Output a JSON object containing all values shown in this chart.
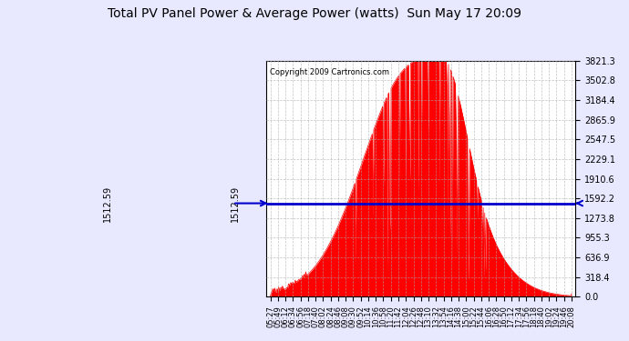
{
  "title": "Total PV Panel Power & Average Power (watts)  Sun May 17 20:09",
  "copyright": "Copyright 2009 Cartronics.com",
  "average_power": 1512.59,
  "y_max": 3821.3,
  "y_ticks": [
    0.0,
    318.4,
    636.9,
    955.3,
    1273.8,
    1592.2,
    1910.6,
    2229.1,
    2547.5,
    2865.9,
    3184.4,
    3502.8,
    3821.3
  ],
  "avg_line_color": "#0000cc",
  "fill_color": "#ff0000",
  "background_color": "#e8e8ff",
  "plot_bg_color": "#ffffff",
  "grid_color": "#aaaaaa",
  "x_labels": [
    "05:27",
    "05:49",
    "06:12",
    "06:34",
    "06:56",
    "07:18",
    "07:40",
    "08:02",
    "08:24",
    "08:46",
    "09:08",
    "09:30",
    "09:52",
    "10:14",
    "10:36",
    "10:58",
    "11:20",
    "11:42",
    "12:04",
    "12:26",
    "12:48",
    "13:10",
    "13:32",
    "13:54",
    "14:16",
    "14:38",
    "15:00",
    "15:22",
    "15:44",
    "16:06",
    "16:28",
    "16:50",
    "17:12",
    "17:34",
    "17:56",
    "18:18",
    "18:40",
    "19:02",
    "19:24",
    "19:46",
    "20:08"
  ]
}
